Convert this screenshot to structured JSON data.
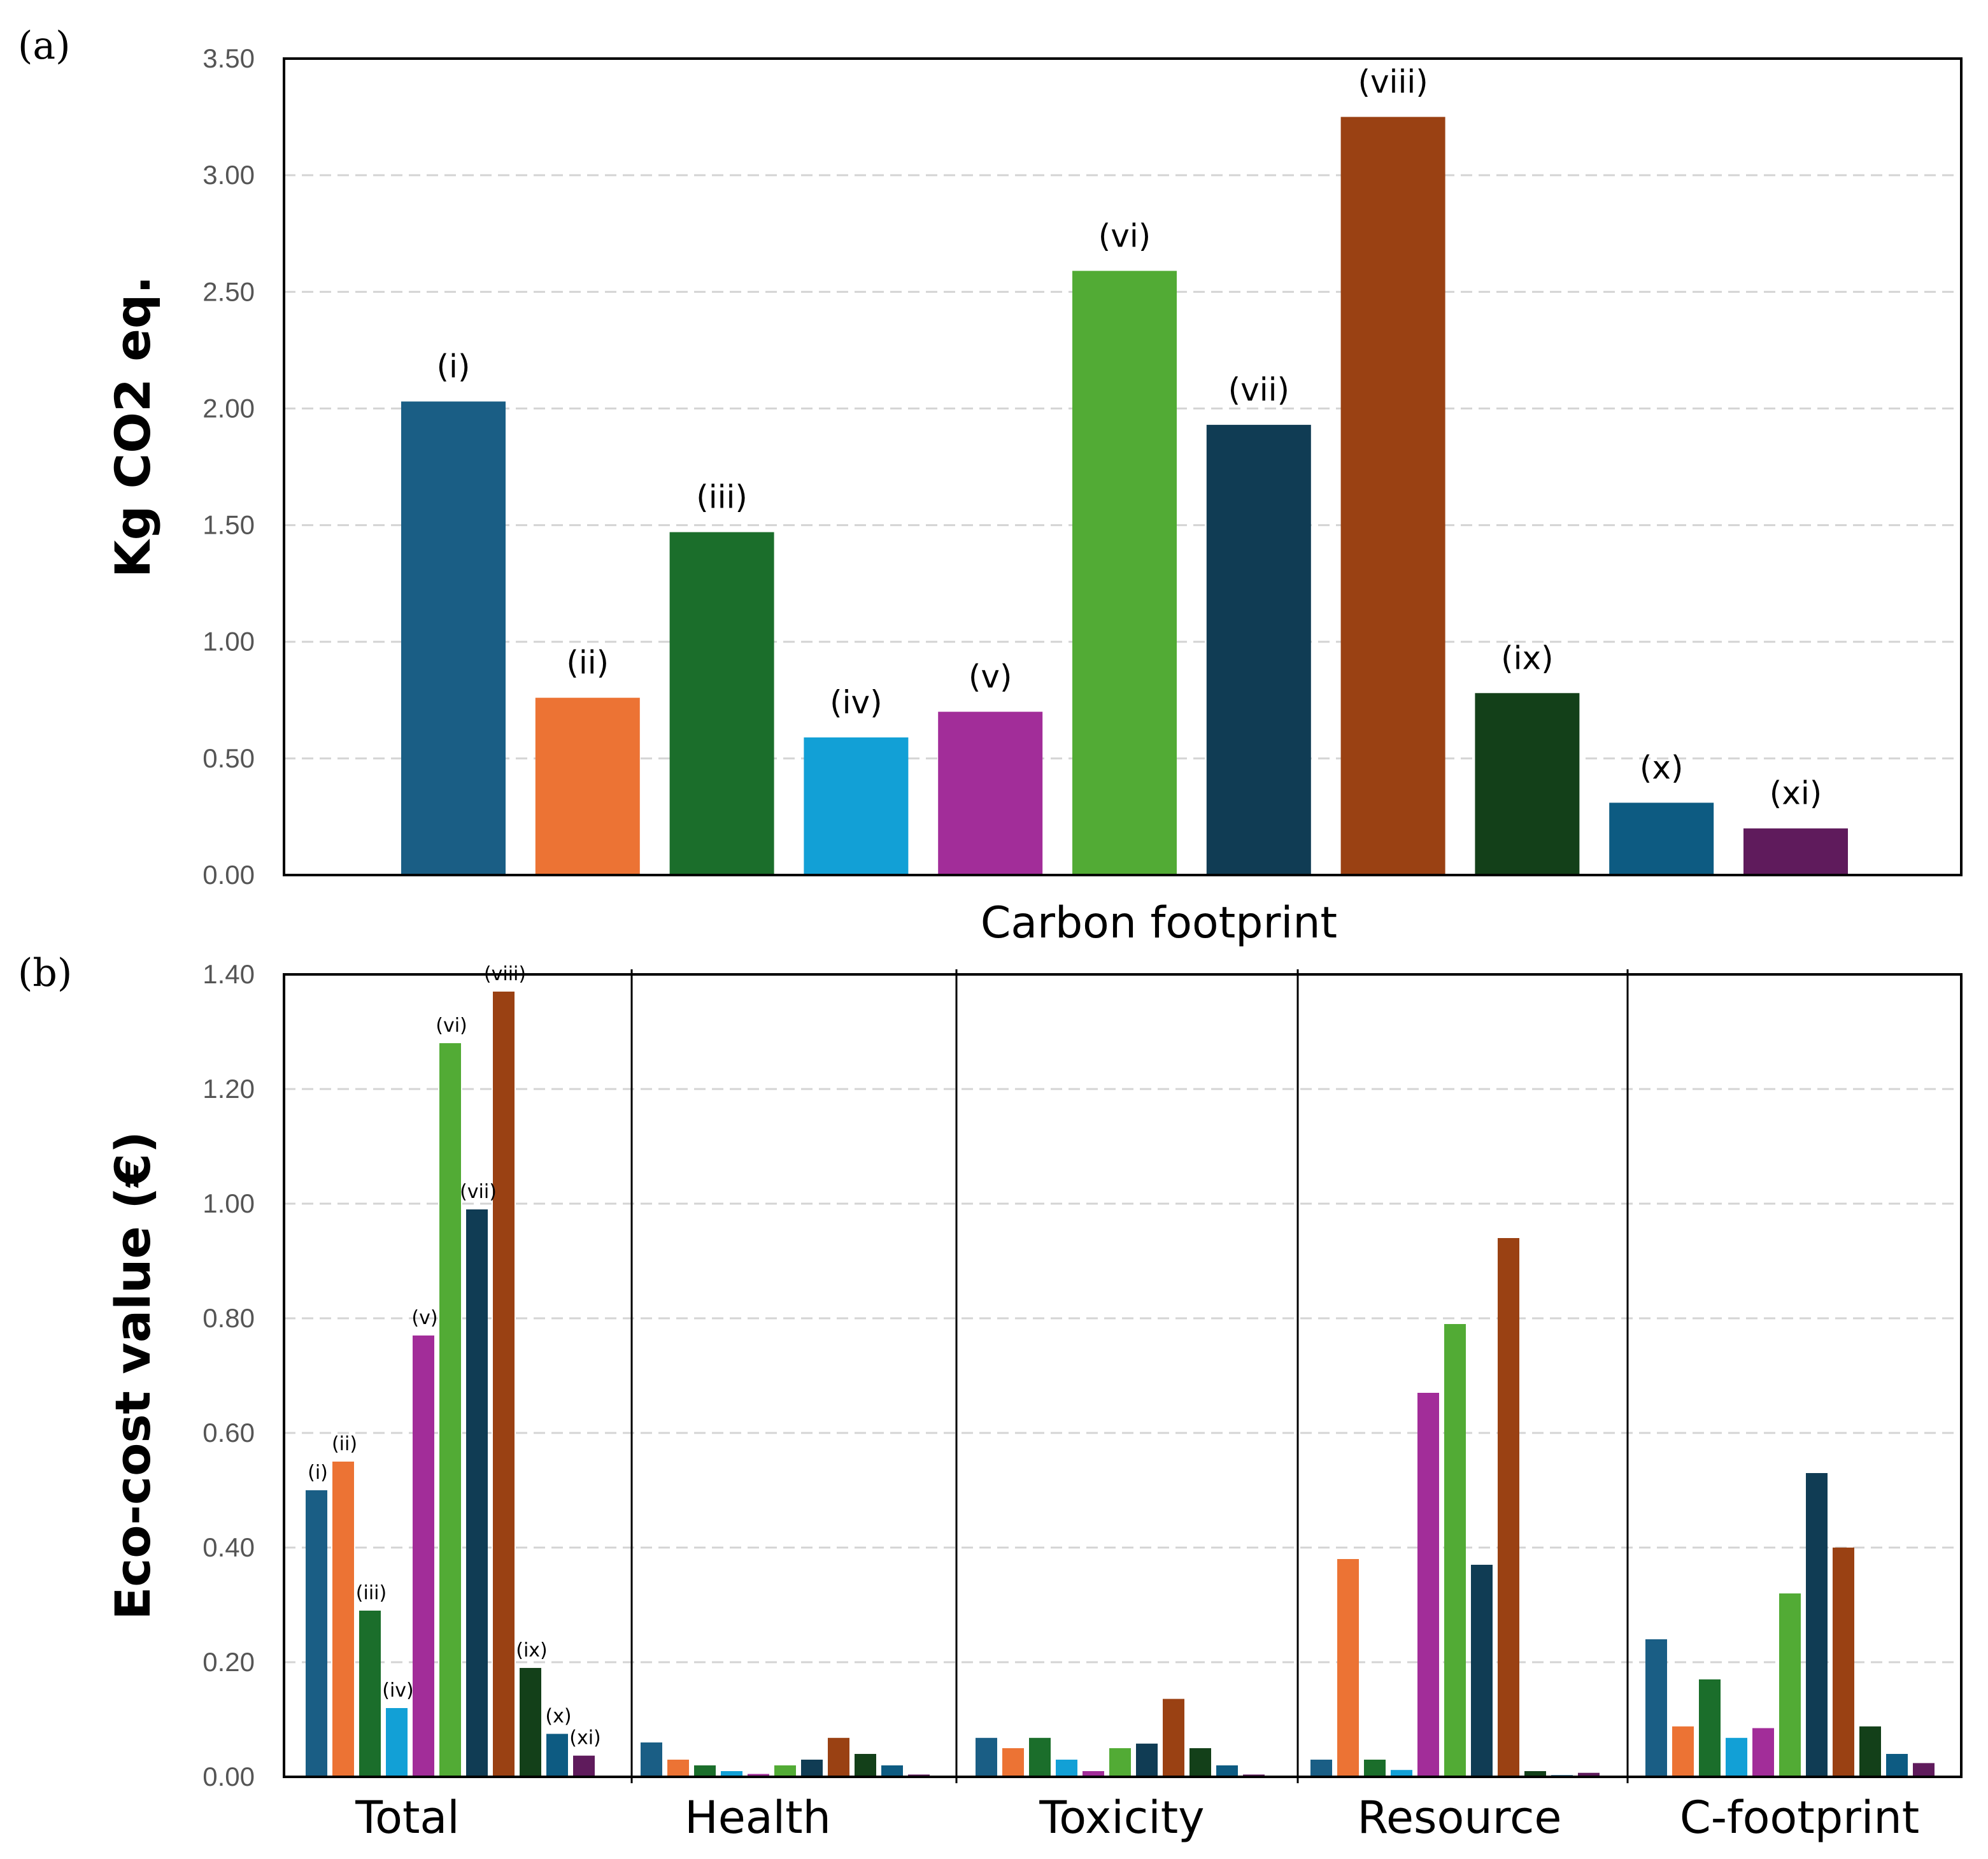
{
  "colors": [
    "#1a5e85",
    "#ec7334",
    "#1b6e2b",
    "#12a0d6",
    "#a22d99",
    "#52ab35",
    "#103c54",
    "#9a4113",
    "#134019",
    "#0d5b82",
    "#5f1b5c"
  ],
  "labels": {
    "a": "(a)",
    "b": "(b)"
  },
  "chart_data": [
    {
      "type": "bar",
      "panel": "(a)",
      "xlabel": "Carbon footprint",
      "ylabel": "Kg CO2 eq.",
      "ylim": [
        0,
        3.5
      ],
      "yticks": [
        "0.00",
        "0.50",
        "1.00",
        "1.50",
        "2.00",
        "2.50",
        "3.00",
        "3.50"
      ],
      "grid": true,
      "categories": [
        "(i)",
        "(ii)",
        "(iii)",
        "(iv)",
        "(v)",
        "(vi)",
        "(vii)",
        "(viii)",
        "(ix)",
        "(x)",
        "(xi)"
      ],
      "values": [
        2.03,
        0.76,
        1.47,
        0.59,
        0.7,
        2.59,
        1.93,
        3.25,
        0.78,
        0.31,
        0.2
      ]
    },
    {
      "type": "bar",
      "panel": "(b)",
      "ylabel": "Eco-cost value (€)",
      "ylim": [
        0,
        1.4
      ],
      "yticks": [
        "0.00",
        "0.20",
        "0.40",
        "0.60",
        "0.80",
        "1.00",
        "1.20",
        "1.40"
      ],
      "grid": true,
      "series_labels": [
        "(i)",
        "(ii)",
        "(iii)",
        "(iv)",
        "(v)",
        "(vi)",
        "(vii)",
        "(viii)",
        "(ix)",
        "(x)",
        "(xi)"
      ],
      "groups": [
        {
          "name": "Total",
          "values": [
            0.5,
            0.55,
            0.29,
            0.12,
            0.77,
            1.28,
            0.99,
            1.37,
            0.19,
            0.075,
            0.037
          ]
        },
        {
          "name": "Health",
          "values": [
            0.06,
            0.03,
            0.02,
            0.01,
            0.005,
            0.02,
            0.03,
            0.068,
            0.04,
            0.02,
            0.004
          ]
        },
        {
          "name": "Toxicity",
          "values": [
            0.068,
            0.05,
            0.068,
            0.03,
            0.01,
            0.05,
            0.058,
            0.136,
            0.05,
            0.02,
            0.004
          ]
        },
        {
          "name": "Resource",
          "values": [
            0.03,
            0.38,
            0.03,
            0.012,
            0.67,
            0.79,
            0.37,
            0.94,
            0.01,
            0.003,
            0.007
          ]
        },
        {
          "name": "C-footprint",
          "values": [
            0.24,
            0.088,
            0.17,
            0.068,
            0.085,
            0.32,
            0.53,
            0.4,
            0.088,
            0.04,
            0.024
          ]
        }
      ]
    }
  ]
}
